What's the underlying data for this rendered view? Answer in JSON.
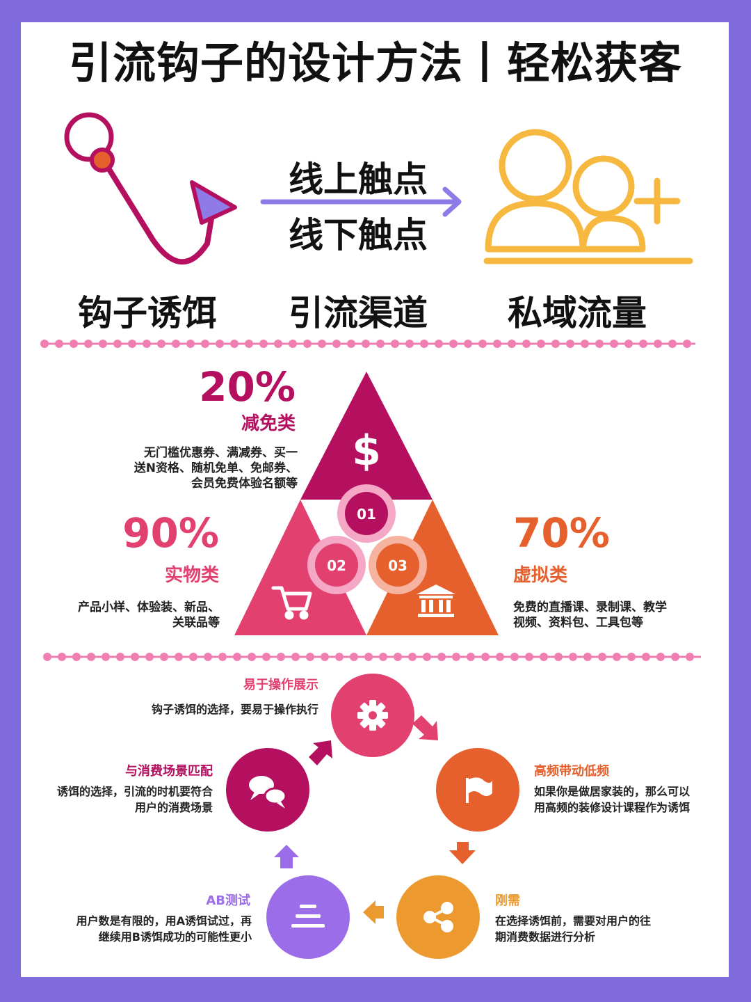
{
  "title": "引流钩子的设计方法丨轻松获客",
  "flow": {
    "hook_label": "钩子诱饵",
    "channel_label": "引流渠道",
    "traffic_label": "私域流量",
    "online": "线上触点",
    "offline": "线下触点"
  },
  "pyramid": {
    "items": [
      {
        "num": "01",
        "pct": "20%",
        "category": "减免类",
        "desc_lines": [
          "无门槛优惠券、满减券、买一",
          "送N资格、随机免单、免邮券、",
          "会员免费体验名额等"
        ]
      },
      {
        "num": "02",
        "pct": "90%",
        "category": "实物类",
        "desc_lines": [
          "产品小样、体验装、新品、",
          "关联品等"
        ]
      },
      {
        "num": "03",
        "pct": "70%",
        "category": "虚拟类",
        "desc_lines": [
          "免费的直播课、录制课、教学",
          "视频、资料包、工具包等"
        ]
      }
    ]
  },
  "cycle": {
    "steps": [
      {
        "title": "易于操作展示",
        "desc_lines": [
          "钩子诱饵的选择，要易于操作执行"
        ]
      },
      {
        "title": "高频带动低频",
        "desc_lines": [
          "如果你是做居家装的，那么可以",
          "用高频的装修设计课程作为诱饵"
        ]
      },
      {
        "title": "刚需",
        "desc_lines": [
          "在选择诱饵前，需要对用户的往",
          "期消费数据进行分析"
        ]
      },
      {
        "title": "AB测试",
        "desc_lines": [
          "用户数是有限的，用A诱饵试过，再",
          "继续用B诱饵成功的可能性更小"
        ]
      },
      {
        "title": "与消费场景匹配",
        "desc_lines": [
          "诱饵的选择，引流的时机要符合",
          "用户的消费场景"
        ]
      }
    ]
  },
  "colors": {
    "background": "#7f6bdc",
    "magenta": "#b5105f",
    "pink": "#e2406f",
    "orange": "#e6602d",
    "amber": "#ec9a2f",
    "purple": "#9b6de8",
    "yellow": "#f7b840",
    "dots": "#ef7fb1"
  }
}
